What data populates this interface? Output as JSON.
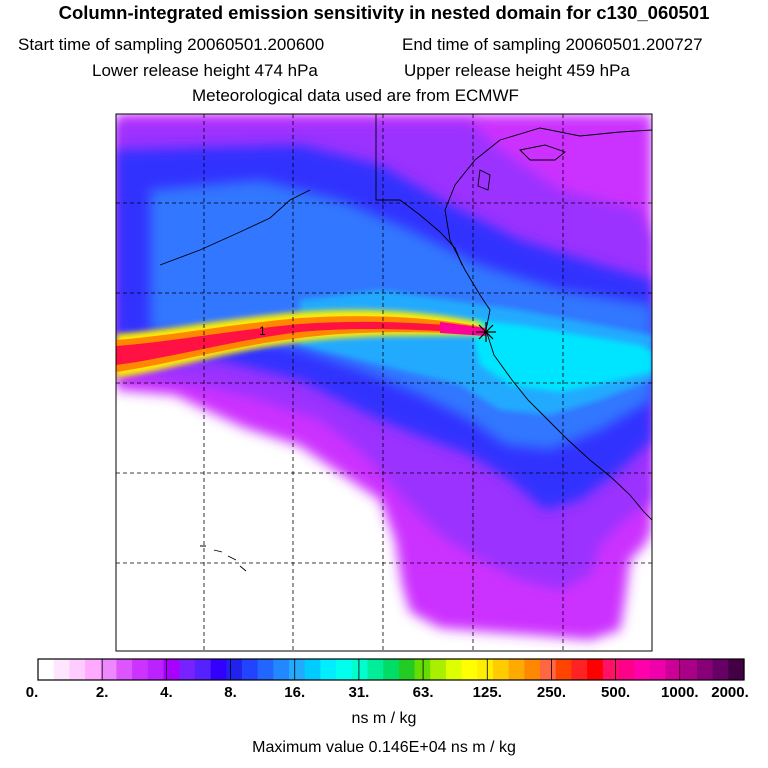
{
  "header": {
    "title": "Column-integrated emission sensitivity in nested domain for c130_060501",
    "start_time": "Start time of sampling 20060501.200600",
    "end_time": "End time of sampling 20060501.200727",
    "lower_release": "Lower release height  474 hPa",
    "upper_release": "Upper release height  459 hPa",
    "met_data": "Meteorological data used are from ECMWF"
  },
  "map": {
    "release_marker_label": "1",
    "colors": {
      "white_region": "#ffffff",
      "magenta": "#cc33ff",
      "violet": "#9b30ff",
      "blue": "#3333ff",
      "mid_blue": "#3377ff",
      "sky_blue": "#22aaff",
      "cyan": "#00e5ff",
      "plume_yellow": "#ffee00",
      "plume_orange": "#ff8800",
      "plume_red": "#ff1144",
      "plume_pink": "#ff0099"
    }
  },
  "colorbar": {
    "units": "ns m / kg",
    "ticks": [
      "0.",
      "2.",
      "4.",
      "8.",
      "16.",
      "31.",
      "63.",
      "125.",
      "250.",
      "500.",
      "1000.",
      "2000."
    ],
    "swatches": [
      "#ffffff",
      "#ffe6ff",
      "#ffccff",
      "#ffaaff",
      "#ee88ff",
      "#dd55ff",
      "#cc33ff",
      "#bb22ff",
      "#aa00ff",
      "#7722ff",
      "#5522ff",
      "#3300ff",
      "#2222ee",
      "#2244ff",
      "#2266ff",
      "#2288ff",
      "#22aaff",
      "#00ccff",
      "#00eeff",
      "#00ffee",
      "#00ffcc",
      "#00ee99",
      "#00dd66",
      "#22cc22",
      "#66dd00",
      "#aaee00",
      "#ddff00",
      "#ffff00",
      "#ffee00",
      "#ffcc00",
      "#ffaa00",
      "#ff8800",
      "#ff6644",
      "#ff4400",
      "#ff2222",
      "#ff0000",
      "#ff1166",
      "#ff0088",
      "#ff00aa",
      "#ee00aa",
      "#cc0099",
      "#aa0088",
      "#880077",
      "#660066",
      "#440044"
    ]
  },
  "footer": {
    "max_value": "Maximum value  0.146E+04 ns m / kg"
  }
}
